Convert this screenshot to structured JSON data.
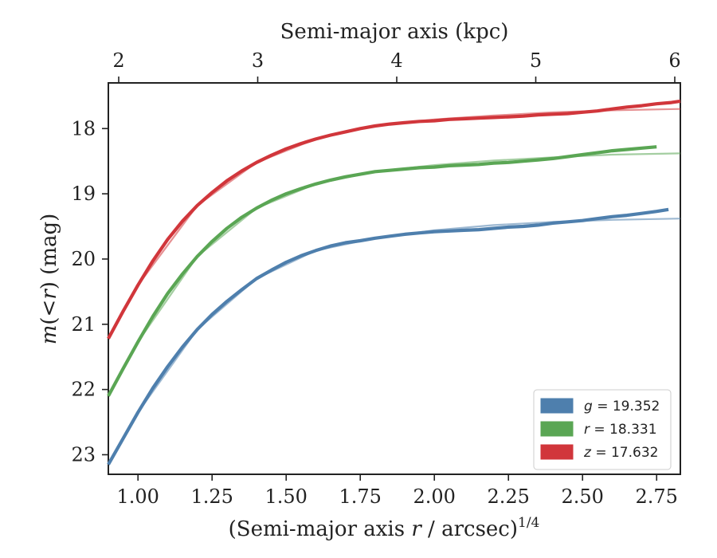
{
  "chart_data": {
    "type": "line",
    "xlabel": "(Semi-major axis r / arcsec)",
    "xlabel_parts": {
      "pre": "(Semi-major axis ",
      "var": "r",
      "post": " / arcsec)",
      "sup": "1/4"
    },
    "ylabel": "m(< r) (mag)",
    "ylabel_parts": {
      "var": "m",
      "mid": "(<",
      "var2": "r",
      "post": ") (mag)"
    },
    "top_xlabel": "Semi-major axis (kpc)",
    "xlim": [
      0.9,
      2.83
    ],
    "ylim": [
      23.3,
      17.3
    ],
    "y_inverted": true,
    "x_ticks": [
      "1.00",
      "1.25",
      "1.50",
      "1.75",
      "2.00",
      "2.25",
      "2.50",
      "2.75"
    ],
    "x_tick_values": [
      1.0,
      1.25,
      1.5,
      1.75,
      2.0,
      2.25,
      2.5,
      2.75
    ],
    "y_ticks": [
      "18",
      "19",
      "20",
      "21",
      "22",
      "23"
    ],
    "y_tick_values": [
      18,
      19,
      20,
      21,
      22,
      23
    ],
    "top_ticks": [
      "2",
      "3",
      "4",
      "5",
      "6"
    ],
    "top_tick_values_kpc": [
      2,
      3,
      4,
      5,
      6
    ],
    "top_tick_positions_x": [
      1.94,
      2.41,
      2.88,
      3.35,
      3.82
    ],
    "grid": false,
    "legend_position": "lower-right",
    "legend": [
      {
        "var": "g",
        "text": " = 19.352",
        "color": "#4e7fad"
      },
      {
        "var": "r",
        "text": " = 18.331",
        "color": "#5aa654"
      },
      {
        "var": "z",
        "text": " = 17.632",
        "color": "#d1363b"
      }
    ],
    "series": [
      {
        "name": "g = 19.352",
        "color": "#4e7fad",
        "x": [
          0.9,
          0.95,
          1.0,
          1.05,
          1.1,
          1.15,
          1.2,
          1.25,
          1.3,
          1.35,
          1.4,
          1.45,
          1.5,
          1.55,
          1.6,
          1.65,
          1.7,
          1.75,
          1.8,
          1.85,
          1.9,
          1.95,
          2.0,
          2.05,
          2.1,
          2.15,
          2.2,
          2.25,
          2.3,
          2.35,
          2.4,
          2.45,
          2.5,
          2.55,
          2.6,
          2.65,
          2.7,
          2.75,
          2.79
        ],
        "y": [
          23.15,
          22.75,
          22.35,
          21.98,
          21.65,
          21.35,
          21.08,
          20.85,
          20.65,
          20.47,
          20.3,
          20.17,
          20.05,
          19.95,
          19.87,
          19.8,
          19.75,
          19.72,
          19.68,
          19.65,
          19.62,
          19.6,
          19.58,
          19.57,
          19.56,
          19.55,
          19.53,
          19.51,
          19.5,
          19.48,
          19.45,
          19.43,
          19.41,
          19.38,
          19.35,
          19.33,
          19.3,
          19.27,
          19.24
        ],
        "model_x": [
          0.9,
          1.0,
          1.2,
          1.4,
          1.6,
          1.8,
          2.0,
          2.2,
          2.4,
          2.6,
          2.83
        ],
        "model_y": [
          23.15,
          22.35,
          21.08,
          20.3,
          19.87,
          19.68,
          19.56,
          19.48,
          19.43,
          19.4,
          19.38
        ]
      },
      {
        "name": "r = 18.331",
        "color": "#5aa654",
        "x": [
          0.9,
          0.95,
          1.0,
          1.05,
          1.1,
          1.15,
          1.2,
          1.25,
          1.3,
          1.35,
          1.4,
          1.45,
          1.5,
          1.55,
          1.6,
          1.65,
          1.7,
          1.75,
          1.8,
          1.85,
          1.9,
          1.95,
          2.0,
          2.05,
          2.1,
          2.15,
          2.2,
          2.25,
          2.3,
          2.35,
          2.4,
          2.45,
          2.5,
          2.55,
          2.6,
          2.65,
          2.7,
          2.75
        ],
        "y": [
          22.1,
          21.68,
          21.27,
          20.88,
          20.53,
          20.23,
          19.96,
          19.73,
          19.53,
          19.36,
          19.22,
          19.1,
          19.0,
          18.92,
          18.85,
          18.79,
          18.74,
          18.7,
          18.66,
          18.64,
          18.62,
          18.6,
          18.59,
          18.57,
          18.56,
          18.55,
          18.53,
          18.52,
          18.5,
          18.48,
          18.46,
          18.43,
          18.4,
          18.37,
          18.34,
          18.32,
          18.3,
          18.28
        ],
        "model_x": [
          0.9,
          1.0,
          1.2,
          1.4,
          1.6,
          1.8,
          2.0,
          2.2,
          2.4,
          2.6,
          2.83
        ],
        "model_y": [
          22.1,
          21.27,
          19.96,
          19.22,
          18.85,
          18.66,
          18.56,
          18.49,
          18.44,
          18.4,
          18.38
        ]
      },
      {
        "name": "z = 17.632",
        "color": "#d1363b",
        "x": [
          0.9,
          0.95,
          1.0,
          1.05,
          1.1,
          1.15,
          1.2,
          1.25,
          1.3,
          1.35,
          1.4,
          1.45,
          1.5,
          1.55,
          1.6,
          1.65,
          1.7,
          1.75,
          1.8,
          1.85,
          1.9,
          1.95,
          2.0,
          2.05,
          2.1,
          2.15,
          2.2,
          2.25,
          2.3,
          2.35,
          2.4,
          2.45,
          2.5,
          2.55,
          2.6,
          2.65,
          2.7,
          2.75,
          2.8,
          2.83
        ],
        "y": [
          21.22,
          20.8,
          20.4,
          20.03,
          19.7,
          19.42,
          19.18,
          18.98,
          18.8,
          18.65,
          18.52,
          18.41,
          18.31,
          18.23,
          18.16,
          18.1,
          18.05,
          18.0,
          17.96,
          17.93,
          17.91,
          17.89,
          17.88,
          17.86,
          17.85,
          17.84,
          17.83,
          17.82,
          17.81,
          17.79,
          17.78,
          17.77,
          17.75,
          17.73,
          17.7,
          17.67,
          17.65,
          17.62,
          17.6,
          17.58
        ],
        "model_x": [
          0.9,
          1.0,
          1.2,
          1.4,
          1.6,
          1.8,
          2.0,
          2.2,
          2.4,
          2.6,
          2.83
        ],
        "model_y": [
          21.22,
          20.4,
          19.18,
          18.52,
          18.16,
          17.96,
          17.86,
          17.8,
          17.75,
          17.72,
          17.7
        ]
      }
    ]
  }
}
